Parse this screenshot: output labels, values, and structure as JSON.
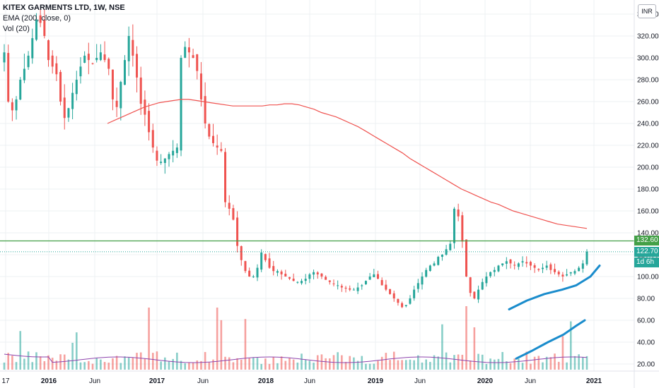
{
  "legend": {
    "symbol": "KITEX GARMENTS LTD, 1W, NSE",
    "ema": "EMA (200, close, 0)",
    "vol": "Vol (20)"
  },
  "currency": "INR",
  "badges": {
    "resistance": "132.60",
    "last_price": "122.70",
    "countdown": "1d 6h"
  },
  "colors": {
    "up": "#26a69a",
    "down": "#ef5350",
    "ema": "#ef5350",
    "resistance": "#43a047",
    "trend": "#1a8ccc",
    "vol_ma": "#8e44ad",
    "grid": "#eef0f3"
  },
  "chart_data": {
    "type": "candlestick",
    "title": "KITEX GARMENTS LTD, 1W, NSE",
    "y_ticks": [
      "20.00",
      "40.00",
      "60.00",
      "80.00",
      "100.00",
      "120.00",
      "140.00",
      "160.00",
      "180.00",
      "200.00",
      "220.00",
      "240.00",
      "260.00",
      "280.00",
      "300.00",
      "320.00",
      "340.00"
    ],
    "x_ticks": [
      "17",
      "2016",
      "Jun",
      "2017",
      "Jun",
      "2018",
      "Jun",
      "2019",
      "Jun",
      "2020",
      "Jun",
      "2021"
    ],
    "ylim": [
      12,
      345
    ],
    "horizontal_line": 132.6,
    "last_price": 122.7,
    "close": [
      305,
      260,
      252,
      262,
      280,
      290,
      302,
      318,
      335,
      332,
      320,
      298,
      292,
      285,
      260,
      245,
      254,
      268,
      280,
      292,
      302,
      298,
      295,
      300,
      305,
      298,
      290,
      262,
      255,
      278,
      298,
      320,
      302,
      282,
      258,
      248,
      232,
      218,
      206,
      205,
      208,
      212,
      215,
      218,
      300,
      310,
      305,
      300,
      288,
      262,
      240,
      228,
      222,
      218,
      215,
      168,
      162,
      152,
      128,
      115,
      105,
      100,
      100,
      108,
      122,
      115,
      108,
      105,
      105,
      102,
      100,
      98,
      96,
      95,
      96,
      98,
      102,
      104,
      102,
      100,
      97,
      95,
      93,
      92,
      90,
      89,
      88,
      88,
      90,
      92,
      96,
      100,
      102,
      98,
      92,
      88,
      84,
      80,
      76,
      72,
      74,
      80,
      88,
      94,
      100,
      106,
      110,
      112,
      118,
      120,
      125,
      130,
      162,
      155,
      132,
      100,
      85,
      80,
      88,
      95,
      100,
      104,
      106,
      110,
      112,
      114,
      112,
      110,
      112,
      114,
      112,
      110,
      108,
      106,
      108,
      110,
      106,
      104,
      102,
      100,
      102,
      104,
      105,
      108,
      112,
      122.7
    ],
    "ema200": [
      240,
      243,
      246,
      249,
      252,
      255,
      257,
      259,
      260,
      261,
      262,
      262,
      261,
      260,
      259,
      258,
      257,
      256,
      256,
      256,
      256,
      256,
      257,
      257,
      258,
      258,
      257,
      255,
      253,
      250,
      248,
      246,
      243,
      240,
      237,
      233,
      229,
      225,
      221,
      217,
      213,
      208,
      204,
      200,
      196,
      192,
      188,
      184,
      180,
      177,
      174,
      171,
      168,
      166,
      163,
      160,
      158,
      156,
      154,
      152,
      150,
      148,
      147,
      146,
      145,
      144
    ],
    "trend_price": [
      70,
      78,
      84,
      88,
      92,
      100,
      110
    ],
    "trend_volume": [
      25,
      32,
      40,
      47,
      55,
      60
    ],
    "volume_ma": 22
  }
}
